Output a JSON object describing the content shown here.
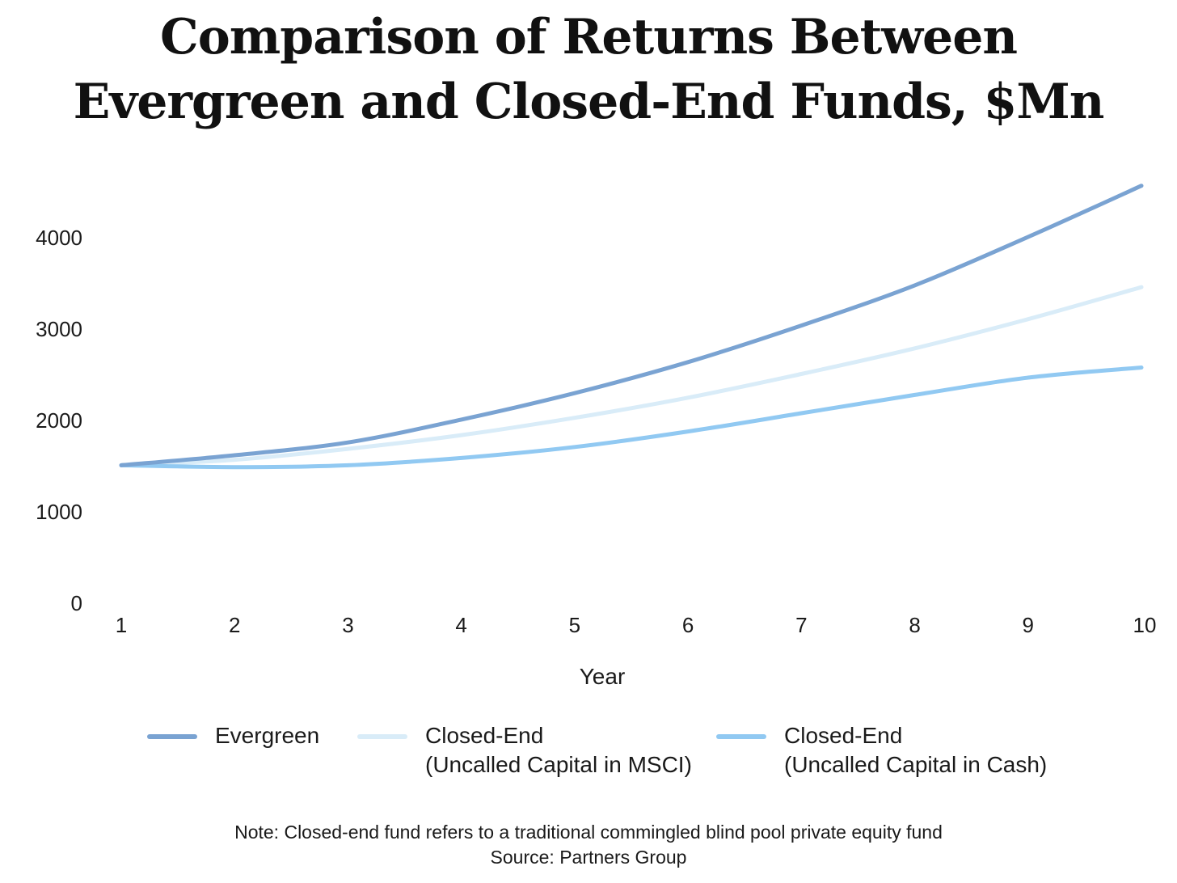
{
  "chart_data": {
    "type": "line",
    "title_lines": [
      "Comparison of Returns Between",
      "Evergreen and Closed-End Funds, $Mn"
    ],
    "xlabel": "Year",
    "ylabel": "",
    "x": [
      1,
      2,
      3,
      4,
      5,
      6,
      7,
      8,
      9,
      10
    ],
    "x_ticks": [
      "1",
      "2",
      "3",
      "4",
      "5",
      "6",
      "7",
      "8",
      "9",
      "10"
    ],
    "y_ticks": [
      0,
      1000,
      2000,
      3000,
      4000
    ],
    "ylim": [
      0,
      4550
    ],
    "grid": false,
    "legend_position": "bottom",
    "series": [
      {
        "name": "Evergreen",
        "legend_lines": [
          "Evergreen"
        ],
        "color": "#7aa3d2",
        "values": [
          1510,
          1620,
          1760,
          2010,
          2300,
          2640,
          3040,
          3480,
          4010,
          4570
        ]
      },
      {
        "name": "Closed-End (Uncalled Capital in MSCI)",
        "legend_lines": [
          "Closed-End",
          "(Uncalled Capital in MSCI)"
        ],
        "color": "#d9ecf8",
        "values": [
          1510,
          1570,
          1690,
          1840,
          2030,
          2250,
          2510,
          2790,
          3110,
          3460
        ]
      },
      {
        "name": "Closed-End (Uncalled Capital in Cash)",
        "legend_lines": [
          "Closed-End",
          "(Uncalled Capital in Cash)"
        ],
        "color": "#91c9f2",
        "values": [
          1510,
          1490,
          1510,
          1590,
          1710,
          1880,
          2080,
          2280,
          2470,
          2580
        ]
      }
    ]
  },
  "footer": {
    "note": "Note: Closed-end fund refers to a traditional commingled blind pool private equity fund",
    "source": "Source: Partners Group"
  }
}
